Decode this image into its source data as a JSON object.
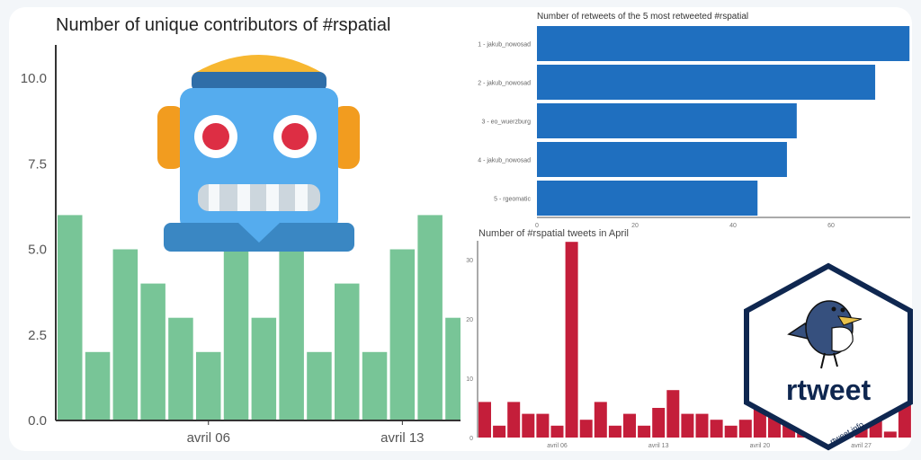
{
  "chart_data": [
    {
      "type": "bar",
      "title": "Number of unique contributors of #rspatial",
      "xlabel": "",
      "ylabel": "",
      "ylim": [
        0,
        11
      ],
      "yticks": [
        "0.0",
        "2.5",
        "5.0",
        "7.5",
        "10.0"
      ],
      "ytick_values": [
        0,
        2.5,
        5,
        7.5,
        10
      ],
      "xticks": [
        {
          "label": "avril 06",
          "index": 5
        },
        {
          "label": "avril 13",
          "index": 12
        }
      ],
      "values": [
        6,
        2,
        5,
        4,
        3,
        2,
        6,
        3,
        6,
        2,
        4,
        2,
        5,
        6,
        3
      ],
      "color": "#78c597"
    },
    {
      "type": "bar",
      "orientation": "horizontal",
      "title": "Number of retweets of the 5 most retweeted #rspatial",
      "categories": [
        "1 - jakub_nowosad",
        "2 - jakub_nowosad",
        "3 - eo_wuerzburg",
        "4 - jakub_nowosad",
        "5 - rgeomatic"
      ],
      "values": [
        76,
        69,
        53,
        51,
        45
      ],
      "xlim": [
        0,
        76
      ],
      "xticks": [
        "0",
        "20",
        "40",
        "60"
      ],
      "xtick_values": [
        0,
        20,
        40,
        60
      ],
      "color": "#1f6fbf"
    },
    {
      "type": "bar",
      "title": "Number of #rspatial tweets in April",
      "ylim": [
        0,
        33
      ],
      "yticks": [
        "0",
        "10",
        "20",
        "30"
      ],
      "ytick_values": [
        0,
        10,
        20,
        30
      ],
      "xticks": [
        {
          "label": "avril 06",
          "index": 5
        },
        {
          "label": "avril 13",
          "index": 12
        },
        {
          "label": "avril 20",
          "index": 19
        },
        {
          "label": "avril 27",
          "index": 26
        }
      ],
      "values": [
        6,
        2,
        6,
        4,
        4,
        2,
        33,
        3,
        6,
        2,
        4,
        2,
        5,
        8,
        4,
        4,
        3,
        2,
        3,
        5,
        5,
        4,
        3,
        3,
        2,
        4,
        4,
        3,
        1,
        6
      ],
      "color": "#c41e3a"
    }
  ],
  "logo": {
    "text": "rtweet",
    "url_text": "rtweet.info"
  },
  "icons": [
    "robot-icon",
    "rtweet-bird-logo"
  ]
}
